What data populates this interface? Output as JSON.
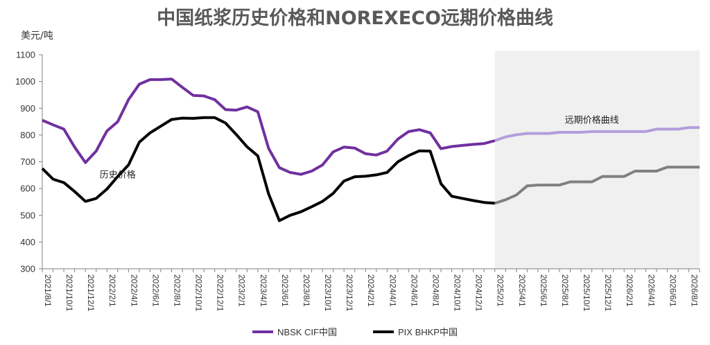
{
  "chart_data": {
    "type": "line",
    "title": "中国纸浆历史价格和NOREXECO远期价格曲线",
    "ylabel": "美元/吨",
    "ylim": [
      300,
      1100
    ],
    "yticks": [
      300,
      400,
      500,
      600,
      700,
      800,
      900,
      1000,
      1100
    ],
    "x": [
      "2021/8",
      "2021/9",
      "2021/10",
      "2021/11",
      "2021/12",
      "2022/1",
      "2022/2",
      "2022/3",
      "2022/4",
      "2022/5",
      "2022/6",
      "2022/7",
      "2022/8",
      "2022/9",
      "2022/10",
      "2022/11",
      "2022/12",
      "2023/1",
      "2023/2",
      "2023/3",
      "2023/4",
      "2023/5",
      "2023/6",
      "2023/7",
      "2023/8",
      "2023/9",
      "2023/10",
      "2023/11",
      "2023/12",
      "2024/1",
      "2024/2",
      "2024/3",
      "2024/4",
      "2024/5",
      "2024/6",
      "2024/7",
      "2024/8",
      "2024/9",
      "2024/10",
      "2024/11",
      "2024/12",
      "2025/1",
      "2025/2",
      "2025/3",
      "2025/4",
      "2025/5",
      "2025/6",
      "2025/7",
      "2025/8",
      "2025/9",
      "2025/10",
      "2025/11",
      "2025/12",
      "2026/1",
      "2026/2",
      "2026/3",
      "2026/4",
      "2026/5",
      "2026/6",
      "2026/7",
      "2026/8",
      "2026/9"
    ],
    "xtick_labels": [
      "2021/8/1",
      "2021/10/1",
      "2021/12/1",
      "2022/2/1",
      "2022/4/1",
      "2022/6/1",
      "2022/8/1",
      "2022/10/1",
      "2022/12/1",
      "2023/2/1",
      "2023/4/1",
      "2023/6/1",
      "2023/8/1",
      "2023/10/1",
      "2023/12/1",
      "2024/2/1",
      "2024/4/1",
      "2024/6/1",
      "2024/8/1",
      "2024/10/1",
      "2024/12/1",
      "2025/2/1",
      "2025/4/1",
      "2025/6/1",
      "2025/8/1",
      "2025/10/1",
      "2025/12/1",
      "2026/2/1",
      "2026/4/1",
      "2026/6/1",
      "2026/8/1"
    ],
    "forecast_start_index": 42,
    "series": [
      {
        "name": "NBSK CIF中国",
        "color": "#7030a0",
        "forecast_color": "#b39ddb",
        "values": [
          855,
          838,
          822,
          755,
          697,
          740,
          815,
          850,
          932,
          990,
          1007,
          1007,
          1009,
          978,
          948,
          946,
          932,
          895,
          893,
          905,
          887,
          750,
          678,
          660,
          653,
          665,
          688,
          737,
          755,
          751,
          730,
          725,
          740,
          785,
          813,
          820,
          808,
          749,
          757,
          761,
          765,
          768,
          779,
          793,
          801,
          806,
          806,
          806,
          810,
          810,
          810,
          813,
          813,
          813,
          813,
          813,
          813,
          822,
          822,
          822,
          828,
          828
        ]
      },
      {
        "name": "PIX BHKP中国",
        "color": "#000000",
        "forecast_color": "#808080",
        "values": [
          675,
          635,
          622,
          589,
          552,
          563,
          598,
          645,
          688,
          773,
          808,
          833,
          858,
          863,
          862,
          865,
          865,
          845,
          802,
          756,
          722,
          580,
          480,
          500,
          513,
          532,
          552,
          582,
          628,
          644,
          646,
          651,
          660,
          700,
          723,
          741,
          740,
          618,
          571,
          563,
          555,
          548,
          545,
          558,
          576,
          610,
          613,
          613,
          613,
          625,
          625,
          625,
          645,
          645,
          645,
          665,
          665,
          665,
          680,
          680,
          680,
          680
        ]
      }
    ],
    "annotations": [
      {
        "text": "历史价格",
        "x_index": 7,
        "y": 640
      },
      {
        "text": "远期价格曲线",
        "x_index": 51,
        "y": 845
      }
    ],
    "forecast_band_color": "#f0f0f0",
    "grid": false,
    "legend": "bottom"
  }
}
